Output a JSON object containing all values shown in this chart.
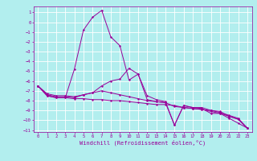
{
  "title": "",
  "xlabel": "Windchill (Refroidissement éolien,°C)",
  "background_color": "#b2eeee",
  "grid_color": "#ffffff",
  "line_color": "#990099",
  "xlim": [
    -0.5,
    23.5
  ],
  "ylim": [
    -11.2,
    1.6
  ],
  "yticks": [
    1,
    0,
    -1,
    -2,
    -3,
    -4,
    -5,
    -6,
    -7,
    -8,
    -9,
    -10,
    -11
  ],
  "xticks": [
    0,
    1,
    2,
    3,
    4,
    5,
    6,
    7,
    8,
    9,
    10,
    11,
    12,
    13,
    14,
    15,
    16,
    17,
    18,
    19,
    20,
    21,
    22,
    23
  ],
  "line1_x": [
    0,
    1,
    2,
    3,
    4,
    5,
    6,
    7,
    8,
    9,
    10,
    11,
    12,
    13,
    14,
    15,
    16,
    17,
    18,
    19,
    20,
    21,
    22,
    23
  ],
  "line1_y": [
    -6.5,
    -7.5,
    -7.7,
    -7.7,
    -4.8,
    -0.8,
    0.5,
    1.2,
    -1.5,
    -2.4,
    -5.9,
    -5.3,
    -7.9,
    -8.1,
    -8.2,
    -10.5,
    -8.5,
    -8.7,
    -8.8,
    -9.3,
    -9.3,
    -9.8,
    -10.3,
    -10.8
  ],
  "line2_x": [
    0,
    1,
    2,
    3,
    4,
    5,
    6,
    7,
    8,
    9,
    10,
    11,
    12,
    13,
    14,
    15,
    16,
    17,
    18,
    19,
    20,
    21,
    22,
    23
  ],
  "line2_y": [
    -6.5,
    -7.5,
    -7.7,
    -7.7,
    -7.8,
    -7.8,
    -7.9,
    -7.9,
    -8.0,
    -8.0,
    -8.1,
    -8.2,
    -8.3,
    -8.4,
    -8.4,
    -8.5,
    -8.7,
    -8.8,
    -8.9,
    -9.0,
    -9.2,
    -9.5,
    -9.8,
    -10.8
  ],
  "line3_x": [
    0,
    1,
    2,
    3,
    4,
    5,
    6,
    7,
    8,
    9,
    10,
    11,
    12,
    13,
    14,
    15,
    16,
    17,
    18,
    19,
    20,
    21,
    22,
    23
  ],
  "line3_y": [
    -6.5,
    -7.4,
    -7.6,
    -7.6,
    -7.7,
    -7.4,
    -7.2,
    -6.5,
    -6.0,
    -5.8,
    -4.7,
    -5.3,
    -7.5,
    -7.9,
    -8.1,
    -10.5,
    -8.5,
    -8.7,
    -8.7,
    -9.0,
    -9.1,
    -9.6,
    -9.9,
    -10.8
  ],
  "line4_x": [
    0,
    1,
    2,
    3,
    4,
    5,
    6,
    7,
    8,
    9,
    10,
    11,
    12,
    13,
    14,
    15,
    16,
    17,
    18,
    19,
    20,
    21,
    22,
    23
  ],
  "line4_y": [
    -6.5,
    -7.3,
    -7.5,
    -7.5,
    -7.6,
    -7.4,
    -7.2,
    -7.0,
    -7.2,
    -7.4,
    -7.6,
    -7.8,
    -8.0,
    -8.1,
    -8.2,
    -8.6,
    -8.7,
    -8.8,
    -8.9,
    -9.1,
    -9.3,
    -9.6,
    -9.9,
    -10.8
  ],
  "tick_fontsize": 4.0,
  "xlabel_fontsize": 5.0,
  "lw": 0.7,
  "ms": 2.0
}
